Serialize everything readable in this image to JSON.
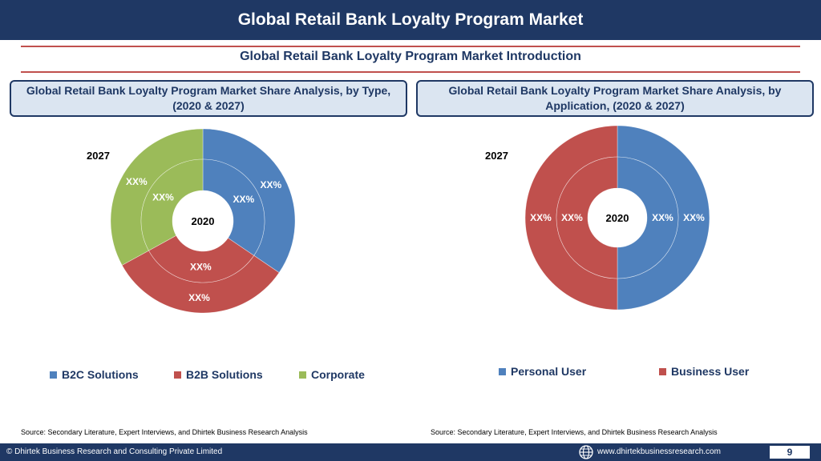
{
  "header": {
    "title": "Global Retail Bank Loyalty Program Market"
  },
  "subtitle": "Global Retail Bank Loyalty Program Market  Introduction",
  "panels": {
    "left": {
      "title": "Global Retail Bank Loyalty Program Market  Share Analysis, by Type, (2020 & 2027)"
    },
    "right": {
      "title": "Global Retail Bank Loyalty Program Market  Share Analysis, by Application, (2020 & 2027)"
    }
  },
  "colors": {
    "blue": "#4f81bd",
    "red": "#c0504d",
    "green": "#9bbb59",
    "navy": "#1f3864"
  },
  "chart_data": [
    {
      "type": "pie",
      "subtype": "doughnut",
      "title": "",
      "rings": [
        {
          "label": "2027",
          "position": "outer",
          "categories": [
            "B2C Solutions",
            "B2B Solutions",
            "Corporate"
          ],
          "values": [
            34.5,
            32.5,
            33
          ],
          "data_labels": [
            "XX%",
            "XX%",
            "XX%"
          ]
        },
        {
          "label": "2020",
          "position": "inner",
          "categories": [
            "B2C Solutions",
            "B2B Solutions",
            "Corporate"
          ],
          "values": [
            34.5,
            32.5,
            33
          ],
          "data_labels": [
            "XX%",
            "XX%",
            "XX%"
          ]
        }
      ],
      "legend": [
        "B2C Solutions",
        "B2B Solutions",
        "Corporate"
      ],
      "legend_position": "bottom",
      "source": "Source: Secondary Literature, Expert Interviews, and Dhirtek Business Research Analysis"
    },
    {
      "type": "pie",
      "subtype": "doughnut",
      "title": "",
      "rings": [
        {
          "label": "2027",
          "position": "outer",
          "categories": [
            "Personal User",
            "Business User"
          ],
          "values": [
            50,
            50
          ],
          "data_labels": [
            "XX%",
            "XX%"
          ]
        },
        {
          "label": "2020",
          "position": "inner",
          "categories": [
            "Personal User",
            "Business User"
          ],
          "values": [
            50,
            50
          ],
          "data_labels": [
            "XX%",
            "XX%"
          ]
        }
      ],
      "legend": [
        "Personal User",
        "Business User"
      ],
      "legend_position": "bottom",
      "source": "Source: Secondary Literature, Expert Interviews, and Dhirtek Business Research Analysis"
    }
  ],
  "footer": {
    "copyright": "© Dhirtek Business Research and Consulting Private Limited",
    "website": "www.dhirtekbusinessresearch.com",
    "page_number": "9",
    "globe_icon": "globe-icon"
  }
}
